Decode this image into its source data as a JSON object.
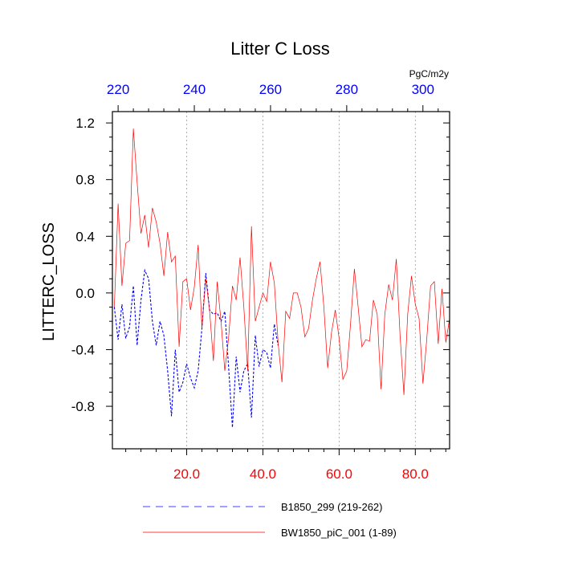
{
  "chart_data": {
    "type": "line",
    "title": "Litter C Loss",
    "ylabel": "LITTERC_LOSS",
    "units": "PgC/m2y",
    "ylim": [
      -1.1,
      1.28
    ],
    "y_ticks": [
      -0.8,
      -0.4,
      0.0,
      0.4,
      0.8,
      1.2
    ],
    "y_tick_labels": [
      "-0.8",
      "-0.4",
      "0.0",
      "0.4",
      "0.8",
      "1.2"
    ],
    "x_bottom": {
      "range": [
        0.5,
        89
      ],
      "ticks": [
        20,
        40,
        60,
        80
      ],
      "tick_labels": [
        "20.0",
        "40.0",
        "60.0",
        "80.0"
      ],
      "color": "#ff0000"
    },
    "x_top": {
      "range": [
        218.5,
        307
      ],
      "ticks": [
        220,
        240,
        260,
        280,
        300
      ],
      "tick_labels": [
        "220",
        "240",
        "260",
        "280",
        "300"
      ],
      "color": "#0000ff"
    },
    "grid": "vertical-dotted",
    "legend_position": "bottom",
    "series": [
      {
        "name": "B1850_299 (219-262)",
        "axis": "top",
        "color": "#0000ff",
        "dash": "dashed",
        "x": [
          219,
          220,
          221,
          222,
          223,
          224,
          225,
          226,
          227,
          228,
          229,
          230,
          231,
          232,
          233,
          234,
          235,
          236,
          237,
          238,
          239,
          240,
          241,
          242,
          243,
          244,
          245,
          246,
          247,
          248,
          249,
          250,
          251,
          252,
          253,
          254,
          255,
          256,
          257,
          258,
          259,
          260,
          261,
          262
        ],
        "values": [
          -0.1,
          -0.33,
          -0.08,
          -0.32,
          -0.24,
          0.05,
          -0.37,
          -0.05,
          0.16,
          0.1,
          -0.2,
          -0.37,
          -0.2,
          -0.3,
          -0.55,
          -0.87,
          -0.4,
          -0.7,
          -0.63,
          -0.5,
          -0.6,
          -0.67,
          -0.55,
          -0.25,
          0.14,
          -0.12,
          -0.15,
          -0.14,
          -0.2,
          -0.13,
          -0.52,
          -0.95,
          -0.45,
          -0.7,
          -0.55,
          -0.5,
          -0.88,
          -0.3,
          -0.52,
          -0.4,
          -0.42,
          -0.53,
          -0.22,
          -0.37
        ]
      },
      {
        "name": "BW1850_piC_001 (1-89)",
        "axis": "bottom",
        "color": "#ff0000",
        "dash": "solid",
        "x": [
          1,
          2,
          3,
          4,
          5,
          6,
          7,
          8,
          9,
          10,
          11,
          12,
          13,
          14,
          15,
          16,
          17,
          18,
          19,
          20,
          21,
          22,
          23,
          24,
          25,
          26,
          27,
          28,
          29,
          30,
          31,
          32,
          33,
          34,
          35,
          36,
          37,
          38,
          39,
          40,
          41,
          42,
          43,
          44,
          45,
          46,
          47,
          48,
          49,
          50,
          51,
          52,
          53,
          54,
          55,
          56,
          57,
          58,
          59,
          60,
          61,
          62,
          63,
          64,
          65,
          66,
          67,
          68,
          69,
          70,
          71,
          72,
          73,
          74,
          75,
          76,
          77,
          78,
          79,
          80,
          81,
          82,
          83,
          84,
          85,
          86,
          87,
          88,
          89
        ],
        "values": [
          -0.1,
          0.63,
          0.05,
          0.35,
          0.37,
          1.16,
          0.78,
          0.42,
          0.55,
          0.32,
          0.6,
          0.5,
          0.35,
          0.12,
          0.43,
          0.22,
          0.26,
          -0.38,
          0.08,
          0.1,
          -0.12,
          0.04,
          0.34,
          -0.25,
          0.1,
          -0.12,
          -0.48,
          0.08,
          -0.2,
          -0.55,
          -0.32,
          0.05,
          -0.05,
          0.25,
          -0.1,
          -0.55,
          0.47,
          -0.2,
          -0.1,
          0.0,
          -0.06,
          0.22,
          0.07,
          -0.35,
          -0.63,
          -0.13,
          -0.18,
          0.0,
          0.0,
          -0.1,
          -0.31,
          -0.25,
          -0.05,
          0.1,
          0.22,
          -0.1,
          -0.53,
          -0.28,
          -0.12,
          -0.32,
          -0.61,
          -0.55,
          -0.22,
          0.17,
          -0.1,
          -0.38,
          -0.33,
          -0.34,
          -0.05,
          -0.15,
          -0.68,
          -0.15,
          0.06,
          -0.05,
          0.24,
          -0.3,
          -0.72,
          -0.15,
          0.12,
          -0.08,
          -0.18,
          -0.64,
          -0.33,
          0.05,
          0.08,
          -0.36,
          0.03,
          -0.35,
          -0.18
        ]
      }
    ]
  }
}
